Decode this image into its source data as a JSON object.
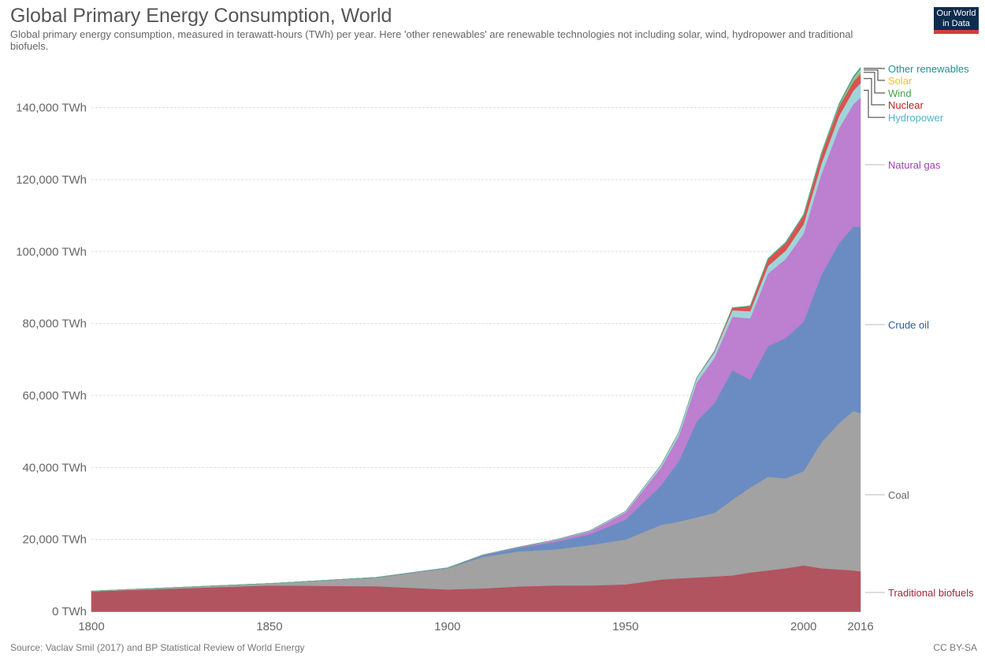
{
  "header": {
    "title": "Global Primary Energy Consumption, World",
    "subtitle": "Global primary energy consumption, measured in terawatt-hours (TWh) per year. Here 'other renewables' are renewable technologies not including solar, wind, hydropower and traditional biofuels.",
    "logo_line1": "Our World",
    "logo_line2": "in Data"
  },
  "footer": {
    "source": "Source: Vaclav Smil (2017) and BP Statistical Review of World Energy",
    "license": "CC BY-SA"
  },
  "chart_data": {
    "type": "area",
    "stacked": true,
    "x": [
      1800,
      1850,
      1880,
      1900,
      1910,
      1920,
      1930,
      1940,
      1950,
      1960,
      1965,
      1970,
      1975,
      1980,
      1985,
      1990,
      1995,
      2000,
      2005,
      2010,
      2014,
      2016
    ],
    "xlim": [
      1800,
      2016
    ],
    "ylim": [
      0,
      150000
    ],
    "x_ticks": [
      "1800",
      "1850",
      "1900",
      "1950",
      "2000",
      "2016"
    ],
    "y_ticks": [
      {
        "value": 0,
        "label": "0 TWh"
      },
      {
        "value": 20000,
        "label": "20,000 TWh"
      },
      {
        "value": 40000,
        "label": "40,000 TWh"
      },
      {
        "value": 60000,
        "label": "60,000 TWh"
      },
      {
        "value": 80000,
        "label": "80,000 TWh"
      },
      {
        "value": 100000,
        "label": "100,000 TWh"
      },
      {
        "value": 120000,
        "label": "120,000 TWh"
      },
      {
        "value": 140000,
        "label": "140,000 TWh"
      }
    ],
    "grid": true,
    "legend_position": "right",
    "series": [
      {
        "name": "Traditional biofuels",
        "color": "#b1545f",
        "label_color": "#9b2838",
        "values": [
          5556,
          7222,
          7000,
          6111,
          6389,
          6944,
          7222,
          7222,
          7500,
          8889,
          9167,
          9444,
          9722,
          10000,
          10833,
          11389,
          12000,
          12778,
          12000,
          11667,
          11389,
          11111
        ]
      },
      {
        "name": "Coal",
        "color": "#a2a2a2",
        "label_color": "#666666",
        "values": [
          97,
          542,
          2350,
          5847,
          8750,
          9740,
          10000,
          11200,
          12500,
          15150,
          15800,
          16700,
          17700,
          21000,
          23600,
          26000,
          25000,
          26200,
          35000,
          40700,
          44300,
          44000
        ]
      },
      {
        "name": "Crude oil",
        "color": "#6b8cc2",
        "label_color": "#2f5c9b",
        "values": [
          0,
          0,
          100,
          150,
          500,
          1000,
          2000,
          3000,
          5500,
          11000,
          16900,
          26700,
          30500,
          36000,
          30000,
          36300,
          39000,
          41500,
          46500,
          50000,
          51300,
          51700
        ]
      },
      {
        "name": "Natural gas",
        "color": "#bd7fcf",
        "label_color": "#a23bb8",
        "values": [
          0,
          0,
          0,
          0,
          100,
          200,
          500,
          800,
          2000,
          5000,
          7000,
          10800,
          12600,
          14900,
          17000,
          20200,
          22000,
          24500,
          28000,
          32000,
          34000,
          36000
        ]
      },
      {
        "name": "Hydropower",
        "color": "#9fd4d9",
        "label_color": "#4cb5c7",
        "values": [
          0,
          0,
          0,
          0,
          0,
          0,
          100,
          200,
          300,
          700,
          1000,
          1200,
          1600,
          1800,
          2000,
          2100,
          2300,
          2600,
          2900,
          3400,
          3800,
          4000
        ]
      },
      {
        "name": "Nuclear",
        "color": "#d9534f",
        "label_color": "#c21c1c",
        "values": [
          0,
          0,
          0,
          0,
          0,
          0,
          0,
          0,
          0,
          0,
          0,
          100,
          300,
          700,
          1400,
          1900,
          2100,
          2400,
          2600,
          2600,
          2450,
          2500
        ]
      },
      {
        "name": "Wind",
        "color": "#8fba8c",
        "label_color": "#49a34a",
        "values": [
          0,
          0,
          0,
          0,
          0,
          0,
          0,
          0,
          0,
          0,
          0,
          0,
          0,
          0,
          0,
          0,
          0,
          30,
          100,
          340,
          700,
          960
        ]
      },
      {
        "name": "Solar",
        "color": "#e8d98a",
        "label_color": "#f2c318",
        "values": [
          0,
          0,
          0,
          0,
          0,
          0,
          0,
          0,
          0,
          0,
          0,
          0,
          0,
          0,
          0,
          0,
          0,
          0,
          0,
          30,
          200,
          330
        ]
      },
      {
        "name": "Other renewables",
        "color": "#4aa98f",
        "label_color": "#18958e",
        "values": [
          0,
          0,
          0,
          0,
          0,
          0,
          0,
          0,
          0,
          0,
          0,
          0,
          0,
          0,
          100,
          200,
          250,
          300,
          350,
          450,
          550,
          600
        ]
      }
    ]
  }
}
